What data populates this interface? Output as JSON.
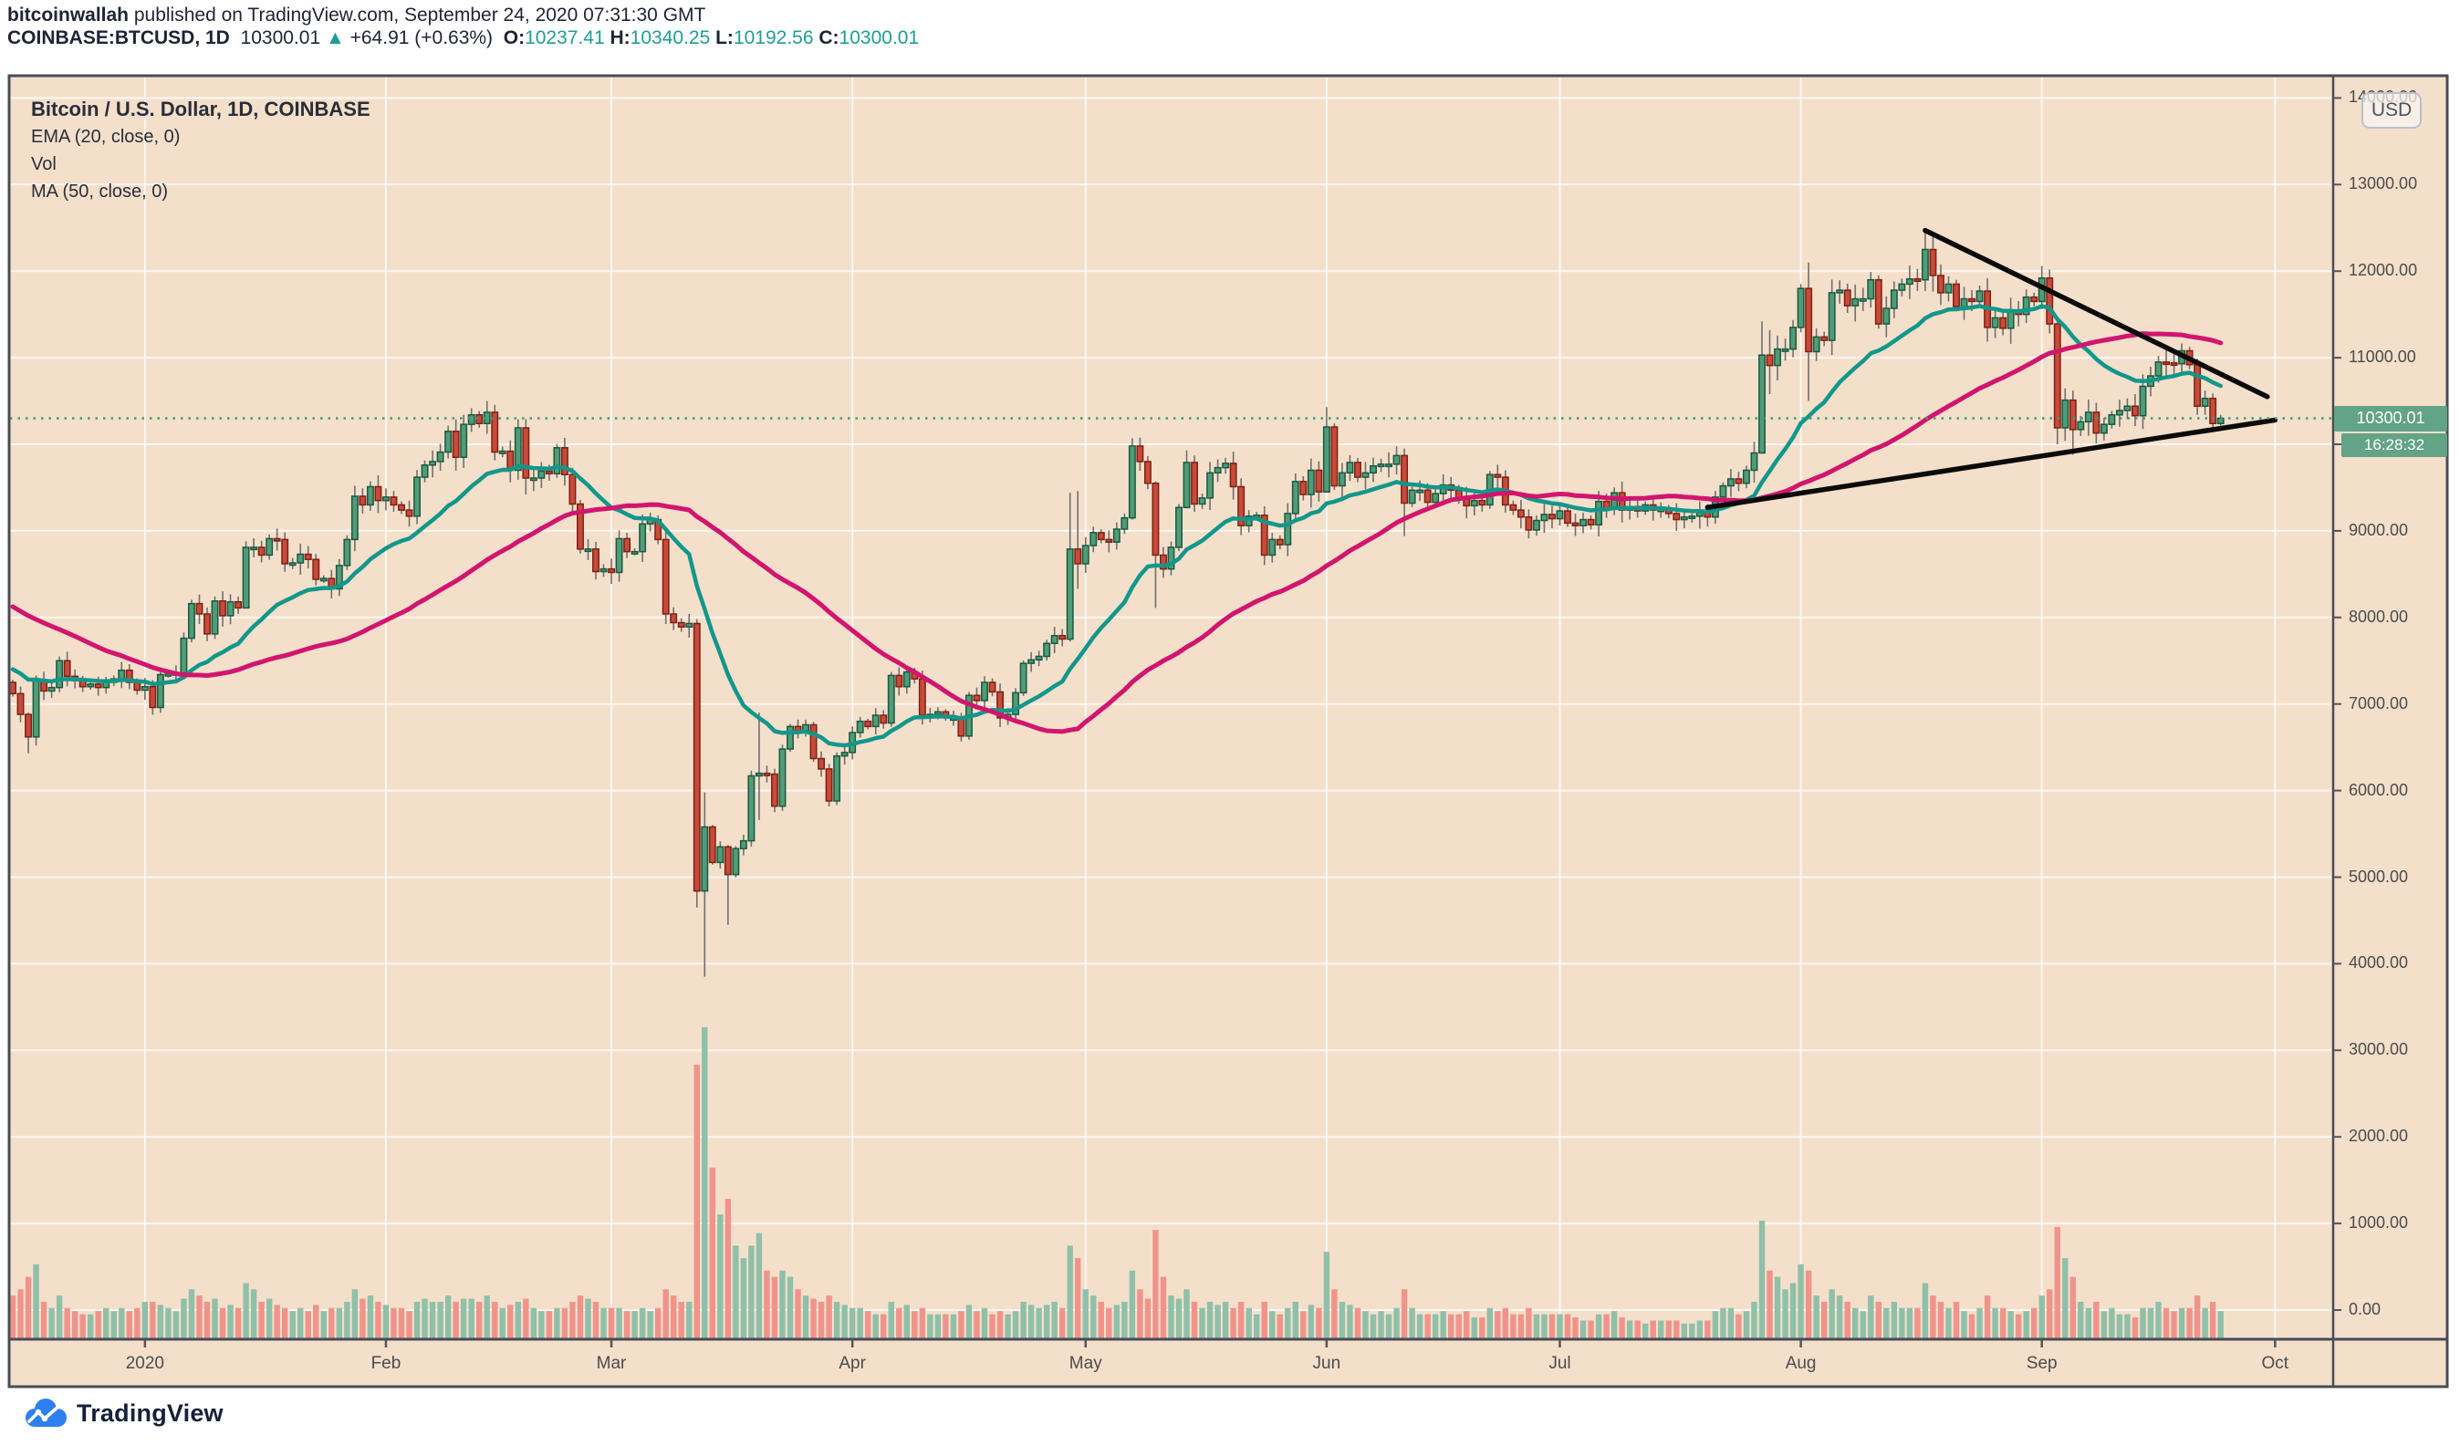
{
  "header": {
    "author": "bitcoinwallah",
    "published": " published on TradingView.com, September 24, 2020 07:31:30 GMT",
    "symbol": "COINBASE:BTCUSD, 1D",
    "last_price": "10300.01",
    "arrow": "▲",
    "change": "+64.91 (+0.63%)",
    "o_label": "O:",
    "o_value": "10237.41",
    "h_label": "H:",
    "h_value": "10340.25",
    "l_label": "L:",
    "l_value": "10192.56",
    "c_label": "C:",
    "c_value": "10300.01"
  },
  "legend": {
    "title": "Bitcoin / U.S. Dollar, 1D, COINBASE",
    "items": [
      "EMA (20, close, 0)",
      "Vol",
      "MA (50, close, 0)"
    ]
  },
  "price_axis": {
    "currency_button": "USD",
    "ticks": [
      "14000.00",
      "13000.00",
      "12000.00",
      "11000.00",
      "10000.00",
      "9000.00",
      "8000.00",
      "7000.00",
      "6000.00",
      "5000.00",
      "4000.00",
      "3000.00",
      "2000.00",
      "1000.00",
      "0.00"
    ],
    "price_label": "10300.01",
    "countdown": "16:28:32"
  },
  "time_axis": {
    "ticks": [
      {
        "label": "2020",
        "index": 17
      },
      {
        "label": "Feb",
        "index": 48
      },
      {
        "label": "Mar",
        "index": 77
      },
      {
        "label": "Apr",
        "index": 108
      },
      {
        "label": "May",
        "index": 138
      },
      {
        "label": "Jun",
        "index": 169
      },
      {
        "label": "Jul",
        "index": 199
      },
      {
        "label": "Aug",
        "index": 230
      },
      {
        "label": "Sep",
        "index": 261
      },
      {
        "label": "Oct",
        "index": 291
      }
    ]
  },
  "footer": {
    "brand": "TradingView"
  },
  "colors": {
    "background": "#f4dfcb",
    "frame": "#474c55",
    "grid": "rgba(255,255,255,0.72)",
    "up": "#519c78",
    "up_border": "#175a40",
    "down": "#c64b3b",
    "down_border": "#801f12",
    "wick": "#6f6f6f",
    "vol_up": "#8fc0a9",
    "vol_down": "#f0948b",
    "ema": "#12978a",
    "ma": "#d2156e",
    "trendline": "#0b0b0b",
    "dotted_price_line": "#3f9b72",
    "label_bg": "#63a386",
    "teal_text": "#1f9e95",
    "logo_blue": "#2e80f0"
  },
  "chart_data": {
    "type": "candlestick",
    "symbol": "COINBASE:BTCUSD",
    "timeframe": "1D",
    "title": "Bitcoin / U.S. Dollar, 1D, COINBASE",
    "start_date": "2019-12-15",
    "end_date": "2020-09-24",
    "price_axis_range": [
      0,
      14500
    ],
    "grid": true,
    "current_price": 10300.01,
    "last_ohlc": {
      "open": 10237.41,
      "high": 10340.25,
      "low": 10192.56,
      "close": 10300.01
    },
    "closes": [
      7120,
      6880,
      6620,
      7280,
      7150,
      7190,
      7500,
      7320,
      7270,
      7200,
      7230,
      7190,
      7250,
      7290,
      7390,
      7250,
      7160,
      7200,
      6960,
      7340,
      7350,
      7360,
      7760,
      8160,
      8040,
      7810,
      8190,
      8020,
      8180,
      8110,
      8810,
      8810,
      8720,
      8910,
      8900,
      8620,
      8630,
      8730,
      8670,
      8440,
      8450,
      8330,
      8600,
      8900,
      9400,
      9300,
      9510,
      9350,
      9390,
      9300,
      9240,
      9170,
      9620,
      9760,
      9800,
      9910,
      10150,
      9850,
      10230,
      10340,
      10240,
      10370,
      9910,
      9920,
      9700,
      10190,
      9610,
      9610,
      9690,
      9660,
      9960,
      9650,
      9310,
      8790,
      8790,
      8530,
      8560,
      8520,
      8910,
      8760,
      8760,
      9080,
      9130,
      8900,
      8040,
      7940,
      7890,
      7930,
      4840,
      5580,
      5170,
      5350,
      5030,
      5330,
      5420,
      6170,
      6200,
      6190,
      5820,
      6480,
      6740,
      6690,
      6760,
      6370,
      6250,
      5880,
      6400,
      6440,
      6670,
      6800,
      6740,
      6870,
      6780,
      7330,
      7200,
      7370,
      7290,
      6870,
      6880,
      6910,
      6840,
      6840,
      6630,
      7100,
      7040,
      7250,
      7140,
      6840,
      6880,
      7130,
      7470,
      7510,
      7550,
      7700,
      7790,
      7750,
      8790,
      8620,
      8830,
      8980,
      8900,
      8870,
      9020,
      9150,
      9980,
      9800,
      9550,
      8720,
      8560,
      8810,
      9270,
      9790,
      9310,
      9380,
      9670,
      9730,
      9780,
      9510,
      9060,
      9170,
      9180,
      8720,
      8900,
      8840,
      9200,
      9570,
      9420,
      9700,
      9450,
      10200,
      9520,
      9670,
      9790,
      9620,
      9670,
      9750,
      9770,
      9770,
      9870,
      9320,
      9470,
      9470,
      9330,
      9430,
      9530,
      9470,
      9380,
      9290,
      9350,
      9300,
      9650,
      9620,
      9300,
      9240,
      9160,
      9010,
      9120,
      9190,
      9140,
      9230,
      9090,
      9060,
      9130,
      9070,
      9340,
      9250,
      9440,
      9240,
      9280,
      9230,
      9300,
      9240,
      9250,
      9200,
      9130,
      9160,
      9170,
      9210,
      9160,
      9390,
      9520,
      9600,
      9550,
      9700,
      9900,
      11030,
      10910,
      11100,
      11100,
      11350,
      11800,
      11070,
      11240,
      11200,
      11750,
      11780,
      11600,
      11680,
      11680,
      11900,
      11390,
      11570,
      11780,
      11850,
      11910,
      11900,
      12250,
      11950,
      11750,
      11850,
      11590,
      11680,
      11650,
      11770,
      11350,
      11460,
      11340,
      11530,
      11500,
      11700,
      11650,
      11920,
      11390,
      10190,
      10510,
      10170,
      10260,
      10370,
      10130,
      10230,
      10340,
      10390,
      10440,
      10330,
      10670,
      10790,
      10950,
      10940,
      10930,
      11080,
      10920,
      10440,
      10530,
      10240,
      10300
    ],
    "volumes_relative": [
      14,
      16,
      20,
      24,
      12,
      10,
      14,
      10,
      9,
      8,
      8,
      9,
      10,
      9,
      10,
      9,
      10,
      12,
      12,
      11,
      10,
      9,
      13,
      16,
      14,
      12,
      13,
      10,
      11,
      10,
      18,
      16,
      12,
      13,
      11,
      10,
      9,
      10,
      9,
      11,
      9,
      10,
      10,
      12,
      16,
      13,
      14,
      12,
      11,
      10,
      10,
      9,
      12,
      13,
      12,
      12,
      14,
      12,
      13,
      13,
      12,
      14,
      12,
      10,
      11,
      12,
      13,
      10,
      9,
      9,
      10,
      10,
      12,
      14,
      13,
      12,
      10,
      10,
      10,
      9,
      9,
      10,
      9,
      10,
      16,
      14,
      12,
      12,
      88,
      100,
      55,
      40,
      45,
      30,
      26,
      30,
      34,
      22,
      20,
      22,
      20,
      16,
      14,
      13,
      12,
      14,
      12,
      11,
      10,
      10,
      9,
      8,
      8,
      12,
      10,
      11,
      9,
      10,
      8,
      8,
      8,
      8,
      9,
      11,
      9,
      10,
      8,
      9,
      8,
      9,
      12,
      11,
      10,
      11,
      12,
      10,
      30,
      26,
      16,
      14,
      12,
      10,
      11,
      12,
      22,
      16,
      13,
      35,
      20,
      14,
      13,
      16,
      12,
      10,
      12,
      11,
      12,
      10,
      12,
      10,
      8,
      12,
      9,
      8,
      10,
      12,
      9,
      11,
      10,
      28,
      16,
      12,
      11,
      10,
      9,
      8,
      9,
      8,
      10,
      16,
      10,
      8,
      8,
      8,
      9,
      8,
      8,
      9,
      7,
      7,
      10,
      9,
      10,
      8,
      8,
      10,
      8,
      8,
      8,
      8,
      8,
      7,
      6,
      6,
      8,
      8,
      9,
      7,
      6,
      6,
      5,
      6,
      6,
      6,
      6,
      5,
      5,
      6,
      6,
      9,
      10,
      10,
      8,
      9,
      12,
      38,
      22,
      20,
      16,
      18,
      24,
      22,
      14,
      12,
      16,
      14,
      12,
      10,
      9,
      14,
      12,
      10,
      12,
      10,
      10,
      10,
      18,
      14,
      12,
      10,
      12,
      9,
      8,
      10,
      14,
      10,
      10,
      9,
      8,
      9,
      10,
      14,
      16,
      36,
      26,
      20,
      12,
      10,
      12,
      9,
      10,
      8,
      8,
      7,
      10,
      10,
      12,
      10,
      9,
      10,
      10,
      14,
      10,
      12,
      9
    ],
    "hl_overrides": {
      "2": [
        6900,
        6430
      ],
      "3": [
        7330,
        6520
      ],
      "30": [
        8880,
        8110
      ],
      "61": [
        10500,
        10120
      ],
      "66": [
        10290,
        9420
      ],
      "88": [
        7980,
        4650
      ],
      "89": [
        5980,
        3850
      ],
      "92": [
        5370,
        4450
      ],
      "96": [
        6900,
        5660
      ],
      "136": [
        9440,
        7720
      ],
      "137": [
        9460,
        8330
      ],
      "144": [
        10070,
        9130
      ],
      "147": [
        9570,
        8110
      ],
      "151": [
        9930,
        9260
      ],
      "169": [
        10430,
        9450
      ],
      "179": [
        9950,
        8940
      ],
      "225": [
        11420,
        9890
      ],
      "226": [
        11320,
        10580
      ],
      "231": [
        12100,
        10500
      ],
      "246": [
        12470,
        11770
      ],
      "261": [
        12060,
        11560
      ],
      "263": [
        11460,
        10000
      ],
      "265": [
        10620,
        9880
      ],
      "273": [
        10580,
        10210
      ],
      "281": [
        10990,
        10340
      ],
      "284": [
        10340,
        10193
      ]
    },
    "overlays": {
      "ema_period": 20,
      "ma_period": 50,
      "seed_closes_before_start": [
        9230,
        9550,
        9210,
        9420,
        9160,
        9150,
        9260,
        9320,
        9210,
        9410,
        9300,
        9320,
        9200,
        8810,
        8810,
        9040,
        8750,
        8810,
        8760,
        8630,
        8470,
        8500,
        8500,
        8180,
        8100,
        8100,
        7590,
        7280,
        7320,
        6930,
        7160,
        7160,
        7530,
        7440,
        7760,
        7570,
        7400,
        7300,
        7300,
        7200,
        7400,
        7520,
        7510,
        7510,
        7340,
        7220,
        7190,
        7210,
        7250,
        7060
      ]
    },
    "trendlines": [
      {
        "name": "descending-resistance",
        "from_index": 246,
        "from_price": 12470,
        "to_index": 290,
        "to_price": 10550
      },
      {
        "name": "ascending-support",
        "from_index": 218,
        "from_price": 9270,
        "to_index": 291,
        "to_price": 10280
      }
    ]
  }
}
